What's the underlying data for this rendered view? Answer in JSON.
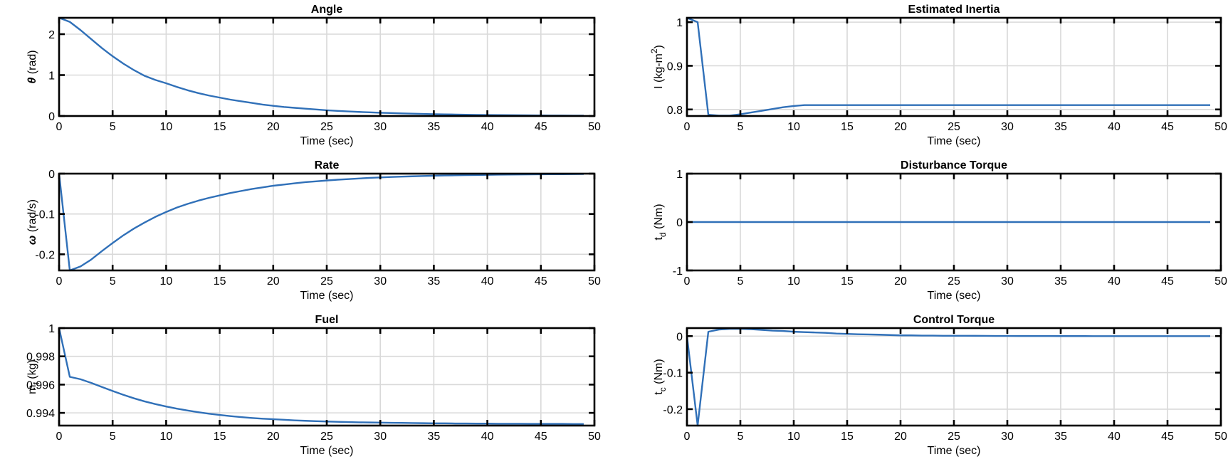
{
  "figure": {
    "layout": "3x2 subplots",
    "line_color": "#3070b8",
    "grid_color": "#d9d9d9"
  },
  "chart_data": [
    {
      "id": "angle",
      "type": "line",
      "title": "Angle",
      "xlabel": "Time (sec)",
      "ylabel": "θ (rad)",
      "ylabel_symbol": "θ",
      "ylabel_unit": " (rad)",
      "xlim": [
        0,
        50
      ],
      "ylim": [
        0,
        2.4
      ],
      "xticks": [
        0,
        5,
        10,
        15,
        20,
        25,
        30,
        35,
        40,
        45,
        50
      ],
      "yticks": [
        0,
        1,
        2
      ],
      "ytick_labels": [
        "0",
        "1",
        "2"
      ],
      "grid": true,
      "series": [
        {
          "name": "theta",
          "x": [
            0,
            1,
            2,
            3,
            4,
            5,
            6,
            7,
            8,
            9,
            10,
            11,
            12,
            13,
            14,
            15,
            16,
            17,
            18,
            19,
            20,
            21,
            22,
            23,
            24,
            25,
            26,
            27,
            28,
            29,
            30,
            31,
            32,
            33,
            34,
            35,
            36,
            37,
            38,
            39,
            40,
            41,
            42,
            43,
            44,
            45,
            46,
            47,
            48,
            49
          ],
          "values": [
            2.4,
            2.3,
            2.1,
            1.88,
            1.66,
            1.46,
            1.28,
            1.12,
            0.98,
            0.88,
            0.8,
            0.71,
            0.63,
            0.56,
            0.5,
            0.45,
            0.4,
            0.36,
            0.32,
            0.28,
            0.25,
            0.22,
            0.2,
            0.18,
            0.16,
            0.14,
            0.125,
            0.112,
            0.1,
            0.09,
            0.08,
            0.072,
            0.064,
            0.057,
            0.051,
            0.045,
            0.04,
            0.036,
            0.032,
            0.028,
            0.025,
            0.022,
            0.02,
            0.018,
            0.016,
            0.014,
            0.012,
            0.011,
            0.01,
            0.009
          ]
        }
      ]
    },
    {
      "id": "rate",
      "type": "line",
      "title": "Rate",
      "xlabel": "Time (sec)",
      "ylabel": "ω (rad/s)",
      "ylabel_symbol": "ω",
      "ylabel_unit": " (rad/s)",
      "xlim": [
        0,
        50
      ],
      "ylim": [
        -0.24,
        0
      ],
      "xticks": [
        0,
        5,
        10,
        15,
        20,
        25,
        30,
        35,
        40,
        45,
        50
      ],
      "yticks": [
        -0.2,
        -0.1,
        0
      ],
      "ytick_labels": [
        "-0.2",
        "-0.1",
        "0"
      ],
      "grid": true,
      "series": [
        {
          "name": "omega",
          "x": [
            0,
            1,
            2,
            3,
            4,
            5,
            6,
            7,
            8,
            9,
            10,
            11,
            12,
            13,
            14,
            15,
            16,
            17,
            18,
            19,
            20,
            21,
            22,
            23,
            24,
            25,
            26,
            27,
            28,
            29,
            30,
            31,
            32,
            33,
            34,
            35,
            36,
            37,
            38,
            39,
            40,
            41,
            42,
            43,
            44,
            45,
            46,
            47,
            48,
            49
          ],
          "values": [
            0,
            -0.24,
            -0.23,
            -0.213,
            -0.192,
            -0.172,
            -0.153,
            -0.136,
            -0.121,
            -0.107,
            -0.095,
            -0.084,
            -0.075,
            -0.067,
            -0.06,
            -0.054,
            -0.048,
            -0.043,
            -0.038,
            -0.034,
            -0.03,
            -0.027,
            -0.024,
            -0.021,
            -0.019,
            -0.017,
            -0.015,
            -0.0135,
            -0.012,
            -0.0105,
            -0.0093,
            -0.0083,
            -0.0074,
            -0.0066,
            -0.0059,
            -0.0052,
            -0.0046,
            -0.0041,
            -0.0037,
            -0.0033,
            -0.0029,
            -0.0026,
            -0.0023,
            -0.002,
            -0.0018,
            -0.0016,
            -0.0014,
            -0.0013,
            -0.0012,
            -0.001
          ]
        }
      ]
    },
    {
      "id": "fuel",
      "type": "line",
      "title": "Fuel",
      "xlabel": "Time (sec)",
      "ylabel": "m_f (kg)",
      "ylabel_symbol": "m",
      "ylabel_sub": "f",
      "ylabel_unit": " (kg)",
      "xlim": [
        0,
        50
      ],
      "ylim": [
        0.9931,
        1
      ],
      "xticks": [
        0,
        5,
        10,
        15,
        20,
        25,
        30,
        35,
        40,
        45,
        50
      ],
      "yticks": [
        0.994,
        0.996,
        0.998,
        1
      ],
      "ytick_labels": [
        "0.994",
        "0.996",
        "0.998",
        "1"
      ],
      "grid": true,
      "series": [
        {
          "name": "fuel_mass",
          "x": [
            0,
            1,
            2,
            3,
            4,
            5,
            6,
            7,
            8,
            9,
            10,
            11,
            12,
            13,
            14,
            15,
            16,
            17,
            18,
            19,
            20,
            21,
            22,
            23,
            24,
            25,
            26,
            27,
            28,
            29,
            30,
            31,
            32,
            33,
            34,
            35,
            36,
            37,
            38,
            39,
            40,
            41,
            42,
            43,
            44,
            45,
            46,
            47,
            48,
            49
          ],
          "values": [
            1.0,
            0.99655,
            0.99638,
            0.99612,
            0.99583,
            0.99555,
            0.99528,
            0.99503,
            0.99481,
            0.99462,
            0.99445,
            0.9943,
            0.99417,
            0.99405,
            0.99394,
            0.99385,
            0.99377,
            0.9937,
            0.99364,
            0.99359,
            0.99355,
            0.99351,
            0.99347,
            0.99344,
            0.99341,
            0.99339,
            0.99337,
            0.99335,
            0.99333,
            0.99332,
            0.99331,
            0.9933,
            0.99329,
            0.99328,
            0.99327,
            0.99326,
            0.99326,
            0.99325,
            0.99325,
            0.99324,
            0.99324,
            0.99323,
            0.99323,
            0.99323,
            0.99322,
            0.99322,
            0.99322,
            0.99322,
            0.99321,
            0.99321
          ]
        }
      ]
    },
    {
      "id": "inertia",
      "type": "line",
      "title": "Estimated Inertia",
      "xlabel": "Time (sec)",
      "ylabel": "I (kg-m²)",
      "ylabel_symbol": "I (kg-m",
      "ylabel_sup": "2",
      "ylabel_unit": ")",
      "xlim": [
        0,
        50
      ],
      "ylim": [
        0.785,
        1.01
      ],
      "xticks": [
        0,
        5,
        10,
        15,
        20,
        25,
        30,
        35,
        40,
        45,
        50
      ],
      "yticks": [
        0.8,
        0.9,
        1
      ],
      "ytick_labels": [
        "0.8",
        "0.9",
        "1"
      ],
      "grid": true,
      "series": [
        {
          "name": "inertia_estimate",
          "x": [
            0,
            1,
            2,
            3,
            4,
            5,
            6,
            7,
            8,
            9,
            10,
            11,
            12,
            13,
            14,
            15,
            16,
            17,
            18,
            19,
            20,
            21,
            22,
            23,
            24,
            25,
            26,
            27,
            28,
            29,
            30,
            31,
            32,
            33,
            34,
            35,
            36,
            37,
            38,
            39,
            40,
            41,
            42,
            43,
            44,
            45,
            46,
            47,
            48,
            49
          ],
          "values": [
            1.01,
            1.0,
            0.788,
            0.786,
            0.786,
            0.789,
            0.793,
            0.797,
            0.801,
            0.805,
            0.808,
            0.81,
            0.81,
            0.81,
            0.81,
            0.81,
            0.81,
            0.81,
            0.81,
            0.81,
            0.81,
            0.81,
            0.81,
            0.81,
            0.81,
            0.81,
            0.81,
            0.81,
            0.81,
            0.81,
            0.81,
            0.81,
            0.81,
            0.81,
            0.81,
            0.81,
            0.81,
            0.81,
            0.81,
            0.81,
            0.81,
            0.81,
            0.81,
            0.81,
            0.81,
            0.81,
            0.81,
            0.81,
            0.81,
            0.81
          ]
        }
      ]
    },
    {
      "id": "disturbance",
      "type": "line",
      "title": "Disturbance Torque",
      "xlabel": "Time (sec)",
      "ylabel": "t_d (Nm)",
      "ylabel_symbol": "t",
      "ylabel_sub": "d",
      "ylabel_unit": " (Nm)",
      "xlim": [
        0,
        50
      ],
      "ylim": [
        -1,
        1
      ],
      "xticks": [
        0,
        5,
        10,
        15,
        20,
        25,
        30,
        35,
        40,
        45,
        50
      ],
      "yticks": [
        -1,
        0,
        1
      ],
      "ytick_labels": [
        "-1",
        "0",
        "1"
      ],
      "grid": true,
      "grid_y": false,
      "series": [
        {
          "name": "disturbance_torque",
          "x": [
            0,
            49
          ],
          "values": [
            0,
            0
          ]
        }
      ]
    },
    {
      "id": "control",
      "type": "line",
      "title": "Control Torque",
      "xlabel": "Time (sec)",
      "ylabel": "t_c (Nm)",
      "ylabel_symbol": "t",
      "ylabel_sub": "c",
      "ylabel_unit": " (Nm)",
      "xlim": [
        0,
        50
      ],
      "ylim": [
        -0.245,
        0.022
      ],
      "xticks": [
        0,
        5,
        10,
        15,
        20,
        25,
        30,
        35,
        40,
        45,
        50
      ],
      "yticks": [
        -0.2,
        -0.1,
        0
      ],
      "ytick_labels": [
        "-0.2",
        "-0.1",
        "0"
      ],
      "grid": true,
      "series": [
        {
          "name": "control_torque",
          "x": [
            0,
            1,
            2,
            3,
            4,
            5,
            6,
            7,
            8,
            9,
            10,
            11,
            12,
            13,
            14,
            15,
            16,
            17,
            18,
            19,
            20,
            21,
            22,
            23,
            24,
            25,
            26,
            27,
            28,
            29,
            30,
            31,
            32,
            33,
            34,
            35,
            36,
            37,
            38,
            39,
            40,
            41,
            42,
            43,
            44,
            45,
            46,
            47,
            48,
            49
          ],
          "values": [
            0,
            -0.245,
            0.012,
            0.018,
            0.02,
            0.02,
            0.019,
            0.017,
            0.015,
            0.014,
            0.012,
            0.011,
            0.01,
            0.009,
            0.007,
            0.006,
            0.005,
            0.0045,
            0.004,
            0.003,
            0.002,
            0.002,
            0.0015,
            0.0015,
            0.001,
            0.001,
            0.001,
            0.0008,
            0.0006,
            0.0005,
            0.0004,
            0.0003,
            0.0003,
            0.0002,
            0.0002,
            0.0001,
            0.0001,
            0.0001,
            0,
            0,
            0,
            0,
            0,
            0,
            0,
            0,
            0,
            0,
            0,
            0
          ]
        }
      ]
    }
  ]
}
